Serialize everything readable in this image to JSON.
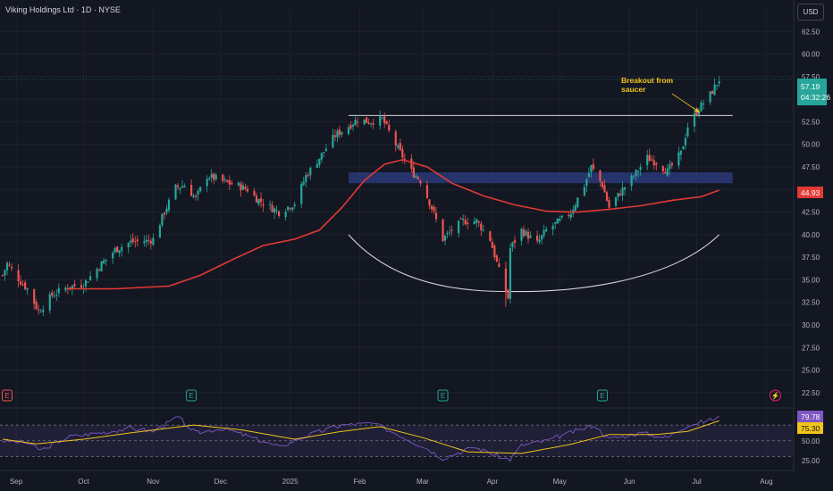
{
  "header": {
    "symbol_title": "Viking Holdings Ltd · 1D · NYSE",
    "currency_button": "USD"
  },
  "annotation": {
    "line1": "Breakout from",
    "line2": "saucer"
  },
  "price_badges": {
    "last_price": "57.19",
    "countdown": "04:32:26",
    "ma_value": "44.93"
  },
  "rsi_badges": {
    "rsi": "79.78",
    "rsi_ma": "75.30"
  },
  "colors": {
    "background": "#131722",
    "up": "#26a69a",
    "down": "#ef5350",
    "ma_line": "#e53935",
    "rsi_line": "#7e57c2",
    "rsi_ma": "#f0c419",
    "zone": "#2a3a78",
    "grid": "#1e222d"
  },
  "events": [
    {
      "label": "E",
      "type": "earnings"
    },
    {
      "label": "E",
      "type": "earnings"
    },
    {
      "label": "E",
      "type": "earnings"
    },
    {
      "label": "E",
      "type": "earnings"
    },
    {
      "label": "⚡",
      "type": "upcoming"
    }
  ],
  "chart_data": {
    "type": "candlestick",
    "title": "Viking Holdings Ltd · 1D · NYSE",
    "price_axis": {
      "ticks": [
        "62.50",
        "60.00",
        "57.50",
        "55.00",
        "52.50",
        "50.00",
        "47.50",
        "45.00",
        "42.50",
        "40.00",
        "37.50",
        "35.00",
        "32.50",
        "30.00",
        "27.50",
        "25.00",
        "22.50"
      ],
      "ylim": [
        21,
        65
      ]
    },
    "time_axis": [
      "Sep",
      "Oct",
      "Nov",
      "Dec",
      "2025",
      "Feb",
      "Mar",
      "Apr",
      "May",
      "Jun",
      "Jul",
      "Aug"
    ],
    "price_path_anchors": [
      {
        "d": "2024-08-26",
        "p": 35.5
      },
      {
        "d": "2024-08-28",
        "p": 36.8
      },
      {
        "d": "2024-09-03",
        "p": 34.8
      },
      {
        "d": "2024-09-06",
        "p": 34.0
      },
      {
        "d": "2024-09-11",
        "p": 31.5
      },
      {
        "d": "2024-09-17",
        "p": 33.3
      },
      {
        "d": "2024-09-24",
        "p": 34.2
      },
      {
        "d": "2024-10-01",
        "p": 34.5
      },
      {
        "d": "2024-10-08",
        "p": 36.5
      },
      {
        "d": "2024-10-15",
        "p": 38.3
      },
      {
        "d": "2024-10-22",
        "p": 39.2
      },
      {
        "d": "2024-10-29",
        "p": 39.3
      },
      {
        "d": "2024-11-01",
        "p": 39.5
      },
      {
        "d": "2024-11-06",
        "p": 42.5
      },
      {
        "d": "2024-11-11",
        "p": 45.2
      },
      {
        "d": "2024-11-15",
        "p": 45.5
      },
      {
        "d": "2024-11-20",
        "p": 44.0
      },
      {
        "d": "2024-11-25",
        "p": 46.5
      },
      {
        "d": "2024-11-29",
        "p": 46.2
      },
      {
        "d": "2024-12-03",
        "p": 45.8
      },
      {
        "d": "2024-12-09",
        "p": 45.4
      },
      {
        "d": "2024-12-13",
        "p": 45.0
      },
      {
        "d": "2024-12-17",
        "p": 44.0
      },
      {
        "d": "2024-12-20",
        "p": 43.5
      },
      {
        "d": "2024-12-27",
        "p": 42.5
      },
      {
        "d": "2025-01-03",
        "p": 43.5
      },
      {
        "d": "2025-01-08",
        "p": 46.5
      },
      {
        "d": "2025-01-14",
        "p": 48.5
      },
      {
        "d": "2025-01-21",
        "p": 51.0
      },
      {
        "d": "2025-01-27",
        "p": 52.0
      },
      {
        "d": "2025-01-31",
        "p": 52.8
      },
      {
        "d": "2025-02-05",
        "p": 52.5
      },
      {
        "d": "2025-02-11",
        "p": 52.8
      },
      {
        "d": "2025-02-18",
        "p": 49.5
      },
      {
        "d": "2025-02-24",
        "p": 47.0
      },
      {
        "d": "2025-02-28",
        "p": 46.0
      },
      {
        "d": "2025-03-05",
        "p": 43.0
      },
      {
        "d": "2025-03-10",
        "p": 39.5
      },
      {
        "d": "2025-03-14",
        "p": 40.5
      },
      {
        "d": "2025-03-19",
        "p": 41.5
      },
      {
        "d": "2025-03-25",
        "p": 41.5
      },
      {
        "d": "2025-03-31",
        "p": 39.5
      },
      {
        "d": "2025-04-04",
        "p": 36.0
      },
      {
        "d": "2025-04-08",
        "p": 33.0
      },
      {
        "d": "2025-04-09",
        "p": 38.5
      },
      {
        "d": "2025-04-14",
        "p": 40.5
      },
      {
        "d": "2025-04-21",
        "p": 39.0
      },
      {
        "d": "2025-04-25",
        "p": 40.5
      },
      {
        "d": "2025-05-01",
        "p": 41.5
      },
      {
        "d": "2025-05-06",
        "p": 42.5
      },
      {
        "d": "2025-05-12",
        "p": 45.5
      },
      {
        "d": "2025-05-15",
        "p": 47.5
      },
      {
        "d": "2025-05-20",
        "p": 45.5
      },
      {
        "d": "2025-05-23",
        "p": 43.0
      },
      {
        "d": "2025-05-29",
        "p": 45.0
      },
      {
        "d": "2025-06-03",
        "p": 46.5
      },
      {
        "d": "2025-06-09",
        "p": 48.5
      },
      {
        "d": "2025-06-13",
        "p": 48.0
      },
      {
        "d": "2025-06-18",
        "p": 47.0
      },
      {
        "d": "2025-06-24",
        "p": 49.0
      },
      {
        "d": "2025-06-27",
        "p": 52.0
      },
      {
        "d": "2025-07-02",
        "p": 54.0
      },
      {
        "d": "2025-07-07",
        "p": 55.5
      },
      {
        "d": "2025-07-11",
        "p": 57.19
      }
    ],
    "moving_average": [
      {
        "d": "2024-09-24",
        "p": 34.0
      },
      {
        "d": "2024-10-15",
        "p": 34.0
      },
      {
        "d": "2024-11-08",
        "p": 34.3
      },
      {
        "d": "2024-11-22",
        "p": 35.5
      },
      {
        "d": "2024-12-06",
        "p": 37.2
      },
      {
        "d": "2024-12-20",
        "p": 38.8
      },
      {
        "d": "2025-01-03",
        "p": 39.5
      },
      {
        "d": "2025-01-14",
        "p": 40.5
      },
      {
        "d": "2025-01-24",
        "p": 43.0
      },
      {
        "d": "2025-02-03",
        "p": 46.0
      },
      {
        "d": "2025-02-12",
        "p": 47.8
      },
      {
        "d": "2025-02-20",
        "p": 48.3
      },
      {
        "d": "2025-03-03",
        "p": 47.5
      },
      {
        "d": "2025-03-14",
        "p": 45.7
      },
      {
        "d": "2025-03-28",
        "p": 44.3
      },
      {
        "d": "2025-04-11",
        "p": 43.3
      },
      {
        "d": "2025-04-25",
        "p": 42.6
      },
      {
        "d": "2025-05-09",
        "p": 42.5
      },
      {
        "d": "2025-05-23",
        "p": 42.8
      },
      {
        "d": "2025-06-06",
        "p": 43.2
      },
      {
        "d": "2025-06-20",
        "p": 43.8
      },
      {
        "d": "2025-07-03",
        "p": 44.2
      },
      {
        "d": "2025-07-11",
        "p": 44.93
      }
    ],
    "resistance_line": {
      "price": 53.2,
      "from": "2025-01-27",
      "to": "2025-07-17"
    },
    "support_zone": {
      "from_price": 45.7,
      "to_price": 46.9,
      "from": "2025-01-27",
      "to": "2025-07-17"
    },
    "saucer_arc": {
      "start": {
        "d": "2025-01-27",
        "p": 40.0
      },
      "bottom": {
        "d": "2025-04-15",
        "p": 33.7
      },
      "end": {
        "d": "2025-07-11",
        "p": 40.0
      }
    },
    "rsi": {
      "axis_ticks": [
        "75.00",
        "50.00",
        "25.00"
      ],
      "levels": [
        70,
        50,
        30
      ],
      "ylim": [
        18,
        86
      ],
      "anchors": [
        {
          "d": "2024-08-26",
          "v": 50
        },
        {
          "d": "2024-09-05",
          "v": 48
        },
        {
          "d": "2024-09-12",
          "v": 38
        },
        {
          "d": "2024-09-24",
          "v": 55
        },
        {
          "d": "2024-10-08",
          "v": 60
        },
        {
          "d": "2024-10-22",
          "v": 66
        },
        {
          "d": "2024-11-01",
          "v": 62
        },
        {
          "d": "2024-11-12",
          "v": 80
        },
        {
          "d": "2024-11-20",
          "v": 60
        },
        {
          "d": "2024-12-02",
          "v": 66
        },
        {
          "d": "2024-12-13",
          "v": 56
        },
        {
          "d": "2024-12-27",
          "v": 42
        },
        {
          "d": "2025-01-10",
          "v": 58
        },
        {
          "d": "2025-01-24",
          "v": 70
        },
        {
          "d": "2025-02-07",
          "v": 72
        },
        {
          "d": "2025-02-18",
          "v": 58
        },
        {
          "d": "2025-03-03",
          "v": 40
        },
        {
          "d": "2025-03-10",
          "v": 28
        },
        {
          "d": "2025-03-24",
          "v": 42
        },
        {
          "d": "2025-04-04",
          "v": 30
        },
        {
          "d": "2025-04-09",
          "v": 26
        },
        {
          "d": "2025-04-14",
          "v": 44
        },
        {
          "d": "2025-04-25",
          "v": 50
        },
        {
          "d": "2025-05-12",
          "v": 66
        },
        {
          "d": "2025-05-16",
          "v": 70
        },
        {
          "d": "2025-05-23",
          "v": 52
        },
        {
          "d": "2025-06-06",
          "v": 60
        },
        {
          "d": "2025-06-18",
          "v": 54
        },
        {
          "d": "2025-06-27",
          "v": 70
        },
        {
          "d": "2025-07-08",
          "v": 77
        },
        {
          "d": "2025-07-11",
          "v": 79.78
        }
      ],
      "ma_anchors": [
        {
          "d": "2024-08-26",
          "v": 52
        },
        {
          "d": "2024-09-10",
          "v": 46
        },
        {
          "d": "2024-10-01",
          "v": 52
        },
        {
          "d": "2024-10-22",
          "v": 60
        },
        {
          "d": "2024-11-19",
          "v": 70
        },
        {
          "d": "2024-12-10",
          "v": 64
        },
        {
          "d": "2025-01-03",
          "v": 52
        },
        {
          "d": "2025-01-24",
          "v": 62
        },
        {
          "d": "2025-02-10",
          "v": 68
        },
        {
          "d": "2025-03-01",
          "v": 54
        },
        {
          "d": "2025-03-21",
          "v": 36
        },
        {
          "d": "2025-04-14",
          "v": 34
        },
        {
          "d": "2025-05-05",
          "v": 45
        },
        {
          "d": "2025-05-23",
          "v": 58
        },
        {
          "d": "2025-06-13",
          "v": 58
        },
        {
          "d": "2025-06-27",
          "v": 62
        },
        {
          "d": "2025-07-11",
          "v": 75.3
        }
      ]
    }
  }
}
